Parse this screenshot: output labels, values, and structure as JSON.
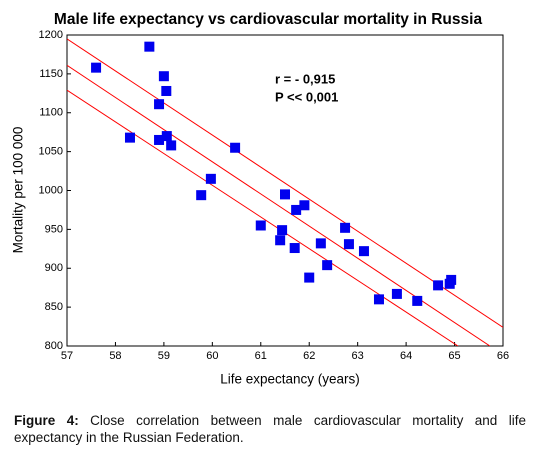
{
  "chart_data": {
    "type": "scatter",
    "title": "Male life expectancy vs cardiovascular mortality in Russia",
    "x_label": "Life expectancy (years)",
    "y_label": "Mortality per 100 000",
    "annotations": [
      "r = - 0,915",
      "P << 0,001"
    ],
    "xlim": [
      57,
      66
    ],
    "xticks": [
      57,
      58,
      59,
      60,
      61,
      62,
      63,
      64,
      65,
      66
    ],
    "ylim": [
      800,
      1200
    ],
    "yticks": [
      800,
      850,
      900,
      950,
      1000,
      1050,
      1100,
      1150,
      1200
    ],
    "series": [
      {
        "color": "#0000ee",
        "x": [
          57.6,
          58.7,
          58.3,
          59.0,
          59.05,
          58.9,
          58.9,
          59.06,
          59.15,
          60.47,
          59.97,
          59.77,
          61.0,
          61.5,
          61.73,
          61.9,
          61.44,
          61.4,
          61.7,
          62.24,
          62.0,
          62.37,
          62.74,
          62.82,
          63.13,
          63.44,
          63.81,
          64.23,
          64.66,
          64.9,
          64.93
        ],
        "values": [
          1158,
          1185,
          1068,
          1147,
          1128,
          1111,
          1065,
          1070,
          1058,
          1055,
          1015,
          994,
          955,
          995,
          975,
          981,
          949,
          936,
          926,
          932,
          888,
          904,
          952,
          931,
          922,
          860,
          867,
          858,
          878,
          880,
          885
        ]
      }
    ],
    "fit_lines": [
      {
        "color": "#ff0000",
        "x": [
          57,
          65.73
        ],
        "values": [
          1161,
          800
        ]
      },
      {
        "color": "#ff0000",
        "x": [
          57,
          66
        ],
        "values": [
          1195,
          824
        ]
      },
      {
        "color": "#ff0000",
        "x": [
          57,
          65.07
        ],
        "values": [
          1129,
          800
        ]
      }
    ]
  },
  "caption": {
    "label": "Figure 4:",
    "text": " Close correlation between male cardiovascular mortality and life expectancy in the Russian Federation."
  }
}
